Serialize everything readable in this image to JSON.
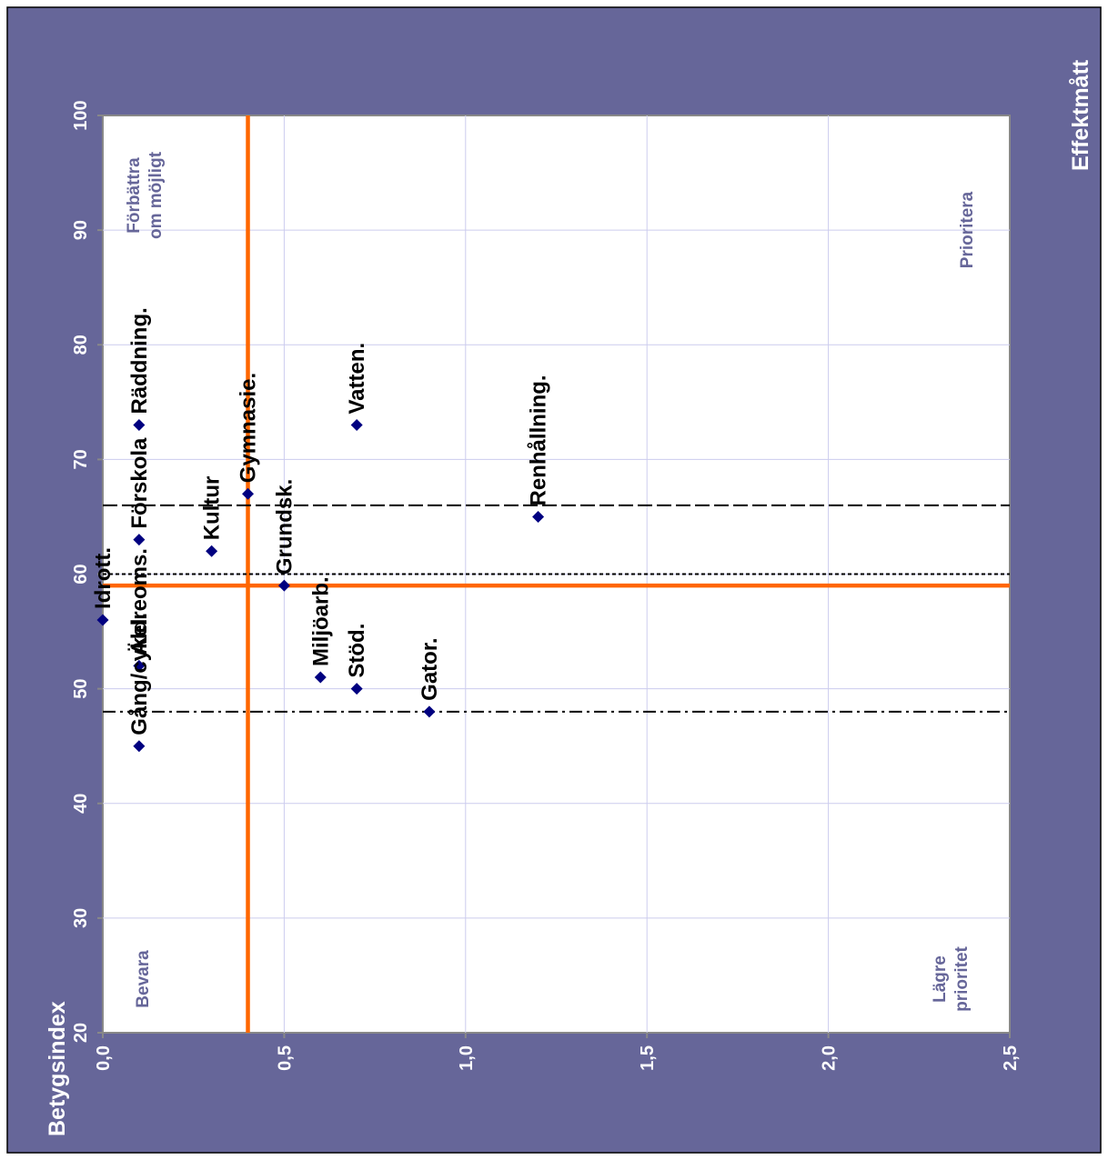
{
  "chart_data": {
    "type": "scatter",
    "orientation": "rotated-90-ccw",
    "xlabel": "Betygsindex",
    "ylabel": "Effektmått",
    "xlim": [
      20,
      100
    ],
    "ylim": [
      0,
      2.5
    ],
    "x_ticks": [
      "20",
      "30",
      "40",
      "50",
      "60",
      "70",
      "80",
      "90",
      "100"
    ],
    "y_ticks": [
      "0,0",
      "0,5",
      "1,0",
      "1,5",
      "2,0",
      "2,5"
    ],
    "grid": true,
    "points": [
      {
        "label": "Räddning.",
        "betygsindex": 73,
        "effektmatt": 0.1
      },
      {
        "label": "Vatten.",
        "betygsindex": 73,
        "effektmatt": 0.7
      },
      {
        "label": "Gymnasie.",
        "betygsindex": 67,
        "effektmatt": 0.4
      },
      {
        "label": "Renhållning.",
        "betygsindex": 65,
        "effektmatt": 1.2
      },
      {
        "label": "Förskola",
        "betygsindex": 63,
        "effektmatt": 0.1
      },
      {
        "label": "Kultur",
        "betygsindex": 62,
        "effektmatt": 0.3
      },
      {
        "label": "Grundsk.",
        "betygsindex": 59,
        "effektmatt": 0.5
      },
      {
        "label": "Idrott.",
        "betygsindex": 56,
        "effektmatt": 0.0
      },
      {
        "label": "Äldreoms.",
        "betygsindex": 52,
        "effektmatt": 0.1
      },
      {
        "label": "Miljöarb.",
        "betygsindex": 51,
        "effektmatt": 0.6
      },
      {
        "label": "Stöd.",
        "betygsindex": 50,
        "effektmatt": 0.7
      },
      {
        "label": "Gator.",
        "betygsindex": 48,
        "effektmatt": 0.9
      },
      {
        "label": "Gång/cykel.",
        "betygsindex": 45,
        "effektmatt": 0.1
      }
    ],
    "reference_lines": [
      {
        "kind": "betygsindex",
        "value": 59,
        "style": "solid",
        "color": "#ff6600"
      },
      {
        "kind": "effektmatt",
        "value": 0.4,
        "style": "solid",
        "color": "#ff6600"
      },
      {
        "kind": "betygsindex",
        "value": 66,
        "style": "long-dash",
        "color": "#000000"
      },
      {
        "kind": "betygsindex",
        "value": 60,
        "style": "short-dash",
        "color": "#000000"
      },
      {
        "kind": "betygsindex",
        "value": 48,
        "style": "dash-dot",
        "color": "#000000"
      }
    ],
    "quadrant_labels": [
      {
        "lines": [
          "Förbättra",
          "om möjligt"
        ],
        "corner": "high-index-high-effect"
      },
      {
        "lines": [
          "Prioritera"
        ],
        "corner": "low-index-high-effect"
      },
      {
        "lines": [
          "Bevara"
        ],
        "corner": "high-index-low-effect"
      },
      {
        "lines": [
          "Lägre",
          "prioritet"
        ],
        "corner": "low-index-low-effect"
      }
    ],
    "colors": {
      "frame": "#666699",
      "plot_background": "#ffffff",
      "grid": "#ccccee",
      "marker": "#000080",
      "quadrant_text": "#666699",
      "reference": "#ff6600",
      "axis_text": "#ffffff",
      "point_text": "#000000"
    }
  }
}
